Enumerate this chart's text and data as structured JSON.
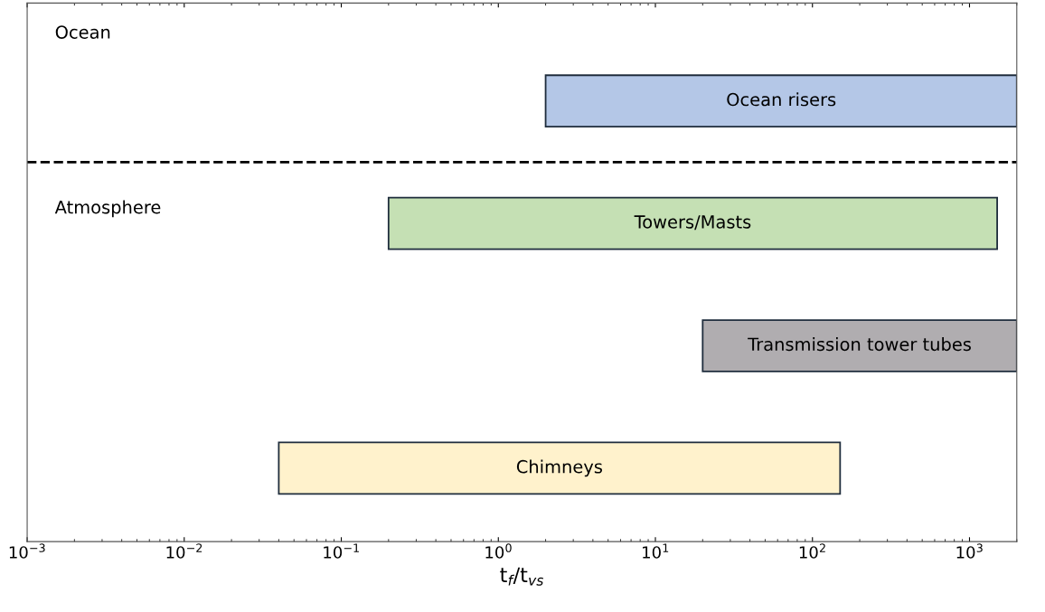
{
  "chart_data": {
    "type": "bar",
    "orientation": "horizontal",
    "xlabel": "t$_{f}$/t$_{vs}$",
    "categories": [
      "Ocean risers",
      "Towers/Masts",
      "Transmission tower tubes",
      "Chimneys"
    ],
    "base": [
      2,
      0.2,
      20,
      0.04
    ],
    "values": [
      1998,
      1499.8,
      1980,
      149.96
    ],
    "colors": [
      "#b4c7e7",
      "#c5e0b4",
      "#b0adb0",
      "#fff2cc"
    ],
    "log": "x",
    "xlim": [
      0.001,
      2000
    ],
    "xticks": [
      {
        "value": 0.001,
        "label": "10$^{−3}$"
      },
      {
        "value": 0.01,
        "label": "10$^{−2}$"
      },
      {
        "value": 0.1,
        "label": "10$^{−1}$"
      },
      {
        "value": 1,
        "label": "10$^{0}$"
      },
      {
        "value": 10,
        "label": "10$^{1}$"
      },
      {
        "value": 100,
        "label": "10$^{2}$"
      },
      {
        "value": 1000,
        "label": "10$^{3}$"
      }
    ],
    "annotations": [
      "Ocean",
      "Atmosphere"
    ],
    "tick_labels": "x",
    "grid": false
  }
}
